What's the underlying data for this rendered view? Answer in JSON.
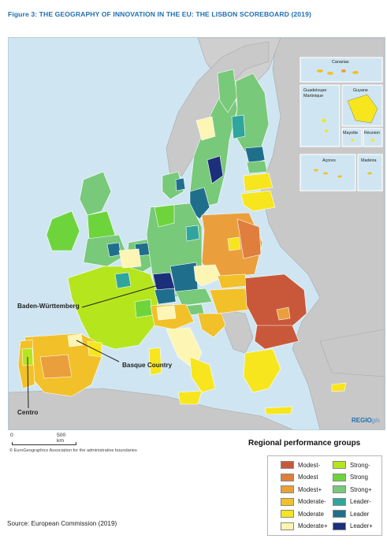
{
  "title": "Figure 3: THE GEOGRAPHY OF INNOVATION IN THE EU: THE LISBON SCOREBOARD (2019)",
  "map": {
    "insets": [
      "Canarias",
      "Guadeloupe Martinique",
      "Guyane",
      "Mayotte",
      "Réunion",
      "Açores",
      "Madeira"
    ],
    "callouts": [
      "Baden-Württemberg",
      "Basque Country",
      "Centro"
    ]
  },
  "scale": {
    "zero": "0",
    "max": "500 km"
  },
  "copyright": "© EuroGeographics Association for the administrative boundaries",
  "brand": {
    "main": "REGIO",
    "suffix": "gis"
  },
  "legend": {
    "title": "Regional performance groups",
    "items": [
      {
        "label": "Modest-",
        "color": "#c9583a"
      },
      {
        "label": "Modest",
        "color": "#e07e3e"
      },
      {
        "label": "Modest+",
        "color": "#ea9f3c"
      },
      {
        "label": "Moderate-",
        "color": "#f2c029"
      },
      {
        "label": "Moderate",
        "color": "#f7e51e"
      },
      {
        "label": "Moderate+",
        "color": "#fdf5b4"
      },
      {
        "label": "Strong-",
        "color": "#b5e51d"
      },
      {
        "label": "Strong",
        "color": "#6ed43c"
      },
      {
        "label": "Strong+",
        "color": "#78c97a"
      },
      {
        "label": "Leader-",
        "color": "#2fa59d"
      },
      {
        "label": "Leader",
        "color": "#1f6f8c"
      },
      {
        "label": "Leader+",
        "color": "#1c2f7a"
      }
    ]
  },
  "source": "Source: European Commission (2019)"
}
